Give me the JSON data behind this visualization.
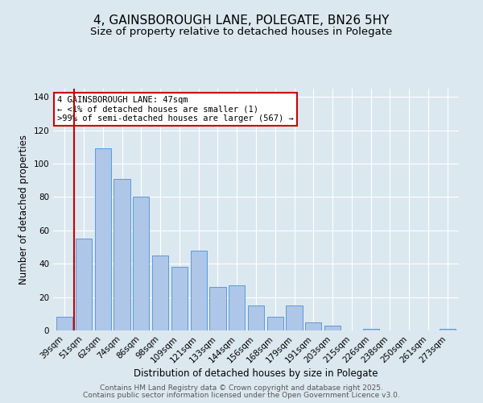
{
  "title": "4, GAINSBOROUGH LANE, POLEGATE, BN26 5HY",
  "subtitle": "Size of property relative to detached houses in Polegate",
  "xlabel": "Distribution of detached houses by size in Polegate",
  "ylabel": "Number of detached properties",
  "categories": [
    "39sqm",
    "51sqm",
    "62sqm",
    "74sqm",
    "86sqm",
    "98sqm",
    "109sqm",
    "121sqm",
    "133sqm",
    "144sqm",
    "156sqm",
    "168sqm",
    "179sqm",
    "191sqm",
    "203sqm",
    "215sqm",
    "226sqm",
    "238sqm",
    "250sqm",
    "261sqm",
    "273sqm"
  ],
  "values": [
    8,
    55,
    109,
    91,
    80,
    45,
    38,
    48,
    26,
    27,
    15,
    8,
    15,
    5,
    3,
    0,
    1,
    0,
    0,
    0,
    1
  ],
  "bar_color": "#aec6e8",
  "bar_edge_color": "#5b9bd5",
  "background_color": "#dce8f0",
  "vline_x_index": 1,
  "vline_color": "#cc0000",
  "annotation_line1": "4 GAINSBOROUGH LANE: 47sqm",
  "annotation_line2": "← <1% of detached houses are smaller (1)",
  "annotation_line3": ">99% of semi-detached houses are larger (567) →",
  "annotation_box_color": "#ffffff",
  "annotation_box_edge": "#cc0000",
  "ylim": [
    0,
    145
  ],
  "yticks": [
    0,
    20,
    40,
    60,
    80,
    100,
    120,
    140
  ],
  "footer1": "Contains HM Land Registry data © Crown copyright and database right 2025.",
  "footer2": "Contains public sector information licensed under the Open Government Licence v3.0.",
  "title_fontsize": 11,
  "subtitle_fontsize": 9.5,
  "axis_label_fontsize": 8.5,
  "tick_fontsize": 7.5,
  "annotation_fontsize": 7.5,
  "footer_fontsize": 6.5
}
